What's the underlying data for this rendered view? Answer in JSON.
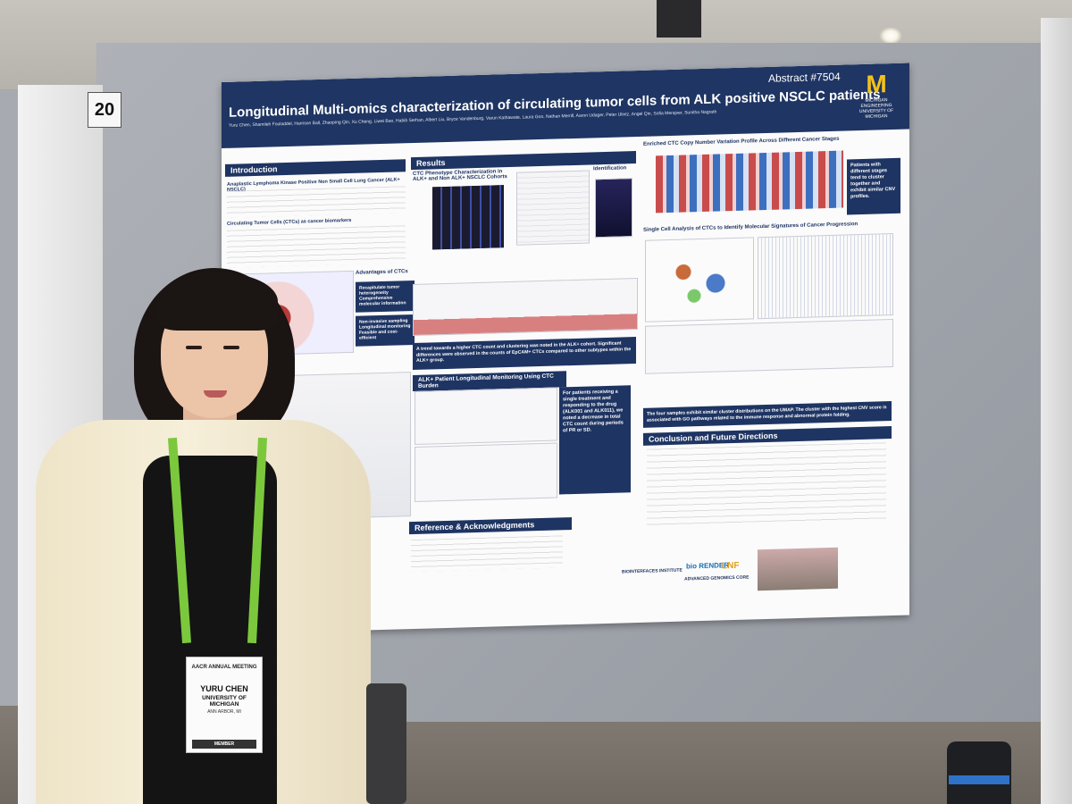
{
  "board_number": "20",
  "poster": {
    "abstract": "Abstract #7504",
    "title": "Longitudinal Multi-omics characterization of circulating tumor cells from ALK positive NSCLC patients",
    "authors": "Yuru Chen, Shamileh Fouladdel, Harrison Ball, Zhaoping Qin, Xu Cheng, Liwei Bao, Habib Serhan, Albert Liu, Bryce Vandenburg, Varun Kathawate, Laura Goo, Nathan Merrill, Aaron Udager, Peter Ulintz, Angel Qin, Sofia Merajver, Sunitha Nagrath",
    "logo": {
      "letter": "M",
      "text": "MICHIGAN ENGINEERING UNIVERSITY OF MICHIGAN"
    },
    "sections": {
      "introduction": "Introduction",
      "results": "Results",
      "reference": "Reference & Acknowledgments",
      "conclusion": "Conclusion and Future Directions"
    },
    "subheads": {
      "alcl": "Anaplastic Lymphoma Kinase Positive Non Small Cell Lung Cancer (ALK+ NSCLC)",
      "ctc": "Circulating Tumor Cells (CTCs) as cancer biomarkers",
      "advantages": "Advantages of CTCs",
      "phenotype": "CTC Phenotype Characterization in ALK+ and Non ALK+ NSCLC Cohorts",
      "fusions": "ALK Fusions Identification",
      "enriched": "Enriched CTC Copy Number Variation Profile Across Different Cancer Stages",
      "single_cell": "Single Cell Analysis of CTCs to Identify Molecular Signatures of Cancer Progression",
      "longitudinal": "ALK+ Patient Longitudinal Monitoring Using CTC Burden"
    },
    "advantage_items": [
      "Recapitulate tumor heterogeneity",
      "Comprehensive molecular information",
      "Non-invasive sampling",
      "Longitudinal monitoring",
      "Feasible and cost-efficient"
    ],
    "callouts": {
      "stages": "Patients with different stages tend to cluster together and exhibit similar CNV profiles.",
      "trend": "A trend towards a higher CTC count and clustering was noted in the ALK+ cohort. Significant differences were observed in the counts of EpCAM+ CTCs compared to other subtypes within the ALK+ group.",
      "treatment": "For patients receiving a single treatment and responding to the drug (ALK001 and ALK011), we noted a decrease in total CTC count during periods of PR or SD.",
      "umap": "The four samples exhibit similar cluster distributions on the UMAP. The cluster with the highest CNV score is associated with GO pathways related to the immune response and abnormal protein folding."
    },
    "bottom_logos": [
      "BIOINTERFACES INSTITUTE",
      "bio RENDER",
      "LNF",
      "ADVANCED GENOMICS CORE"
    ]
  },
  "badge": {
    "event": "AACR ANNUAL MEETING",
    "name": "YURU CHEN",
    "org": "UNIVERSITY OF MICHIGAN",
    "location": "ANN ARBOR, MI",
    "role": "MEMBER"
  },
  "colors": {
    "poster_header": "#1f3563",
    "lanyard": "#7cc83d",
    "um_maize": "#f2c21b"
  }
}
